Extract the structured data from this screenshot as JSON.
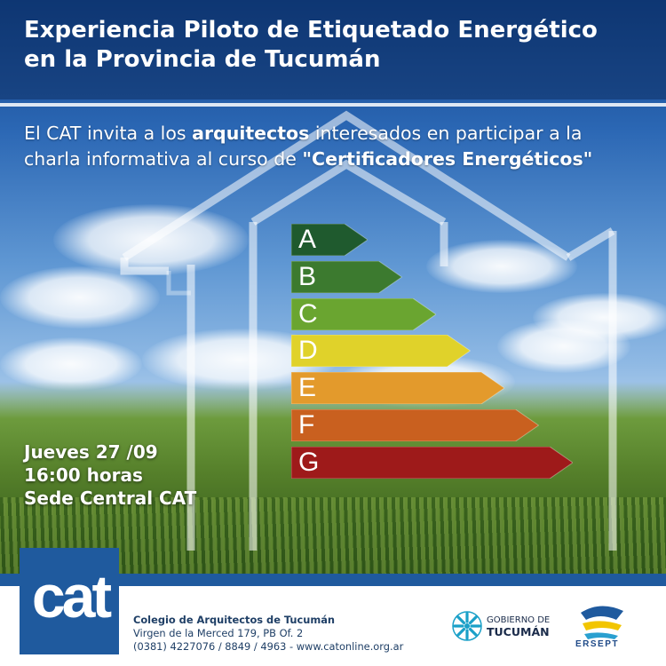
{
  "header": {
    "title_line1": "Experiencia Piloto de Etiquetado Energético",
    "title_line2": "en la Provincia de Tucumán"
  },
  "invite": {
    "part1": "El CAT invita a los ",
    "bold1": "arquitectos",
    "part2": " interesados en participar a la",
    "part3": "charla informativa al curso de ",
    "bold2": "\"Certificadores Energéticos\""
  },
  "energy_label": {
    "ratings": [
      {
        "letter": "A",
        "color": "#1f5a2e"
      },
      {
        "letter": "B",
        "color": "#3c7a2f"
      },
      {
        "letter": "C",
        "color": "#6aa530"
      },
      {
        "letter": "D",
        "color": "#e0d22a"
      },
      {
        "letter": "E",
        "color": "#e39a2c"
      },
      {
        "letter": "F",
        "color": "#c9601f"
      },
      {
        "letter": "G",
        "color": "#9e1a1a"
      }
    ]
  },
  "event": {
    "date": "Jueves 27 /09",
    "time": "16:00 horas",
    "place": "Sede Central CAT"
  },
  "footer": {
    "logo_text": "cat",
    "org_name": "Colegio de Arquitectos de Tucumán",
    "address": "Virgen de la Merced 179, PB Of. 2",
    "contact": "(0381) 4227076 / 8849 / 4963 - www.catonline.org.ar",
    "gov_line1": "GOBIERNO DE",
    "gov_line2": "TUCUMÁN",
    "ersept": "ERSEPT"
  },
  "colors": {
    "brand_blue": "#1f5a9e"
  }
}
